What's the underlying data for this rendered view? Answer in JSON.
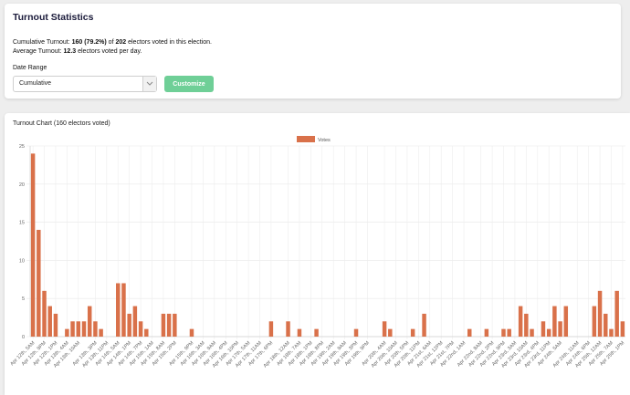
{
  "stats": {
    "title": "Turnout Statistics",
    "cumulative_prefix": "Cumulative Turnout: ",
    "cumulative_count": "160 (79.2%)",
    "cumulative_mid": " of ",
    "cumulative_total": "202",
    "cumulative_suffix": " electors voted in this election.",
    "average_prefix": "Average Turnout: ",
    "average_value": "12.3",
    "average_suffix": " electors voted per day.",
    "date_range_label": "Date Range",
    "date_range_value": "Cumulative",
    "customize_label": "Customize"
  },
  "chart": {
    "title": "Turnout Chart (160 electors voted)"
  },
  "colors": {
    "bar": "#d9714a",
    "accent": "#6fcf97"
  },
  "icons": {
    "dropdown": "chevron-down-icon"
  },
  "chart_data": {
    "type": "bar",
    "title": "",
    "xlabel": "",
    "ylabel": "",
    "ylim": [
      0,
      25
    ],
    "yticks": [
      0,
      5,
      10,
      15,
      20,
      25
    ],
    "legend": "top",
    "grid": true,
    "tick_labels": [
      "Apr 12th, 5AM",
      "Apr 12th, 9PM",
      "Apr 12th, 1PM",
      "Apr 13th, 4AM",
      "Apr 13th, 10AM",
      "Apr 13th, 3PM",
      "Apr 13th, 11PM",
      "Apr 14th, 5AM",
      "Apr 14th, 1PM",
      "Apr 14th, 7PM",
      "Apr 15th, 1AM",
      "Apr 15th, 8AM",
      "Apr 15th, 2PM",
      "Apr 15th, 9PM",
      "Apr 16th, 3AM",
      "Apr 16th, 9AM",
      "Apr 16th, 4PM",
      "Apr 16th, 10PM",
      "Apr 17th, 5AM",
      "Apr 17th, 11AM",
      "Apr 17th, 6PM",
      "Apr 18th, 12AM",
      "Apr 18th, 7AM",
      "Apr 18th, 1PM",
      "Apr 18th, 8PM",
      "Apr 19th, 2AM",
      "Apr 19th, 9AM",
      "Apr 19th, 3PM",
      "Apr 19th, 9PM",
      "Apr 20th, 4AM",
      "Apr 20th, 10AM",
      "Apr 20th, 5PM",
      "Apr 20th, 11PM",
      "Apr 21st, 6AM",
      "Apr 21st, 12PM",
      "Apr 21st, 7PM",
      "Apr 22nd, 1AM",
      "Apr 22nd, 8AM",
      "Apr 22nd, 2PM",
      "Apr 22nd, 9PM",
      "Apr 23rd, 3AM",
      "Apr 23rd, 10AM",
      "Apr 23rd, 4PM",
      "Apr 23rd, 11PM",
      "Apr 24th, 5AM",
      "Apr 24th, 11AM",
      "Apr 24th, 6PM",
      "Apr 25th, 12AM",
      "Apr 25th, 7AM",
      "Apr 25th, 1PM"
    ],
    "series": [
      {
        "name": "Votes",
        "values": [
          24,
          14,
          6,
          4,
          3,
          0,
          1,
          2,
          2,
          2,
          4,
          2,
          1,
          0,
          0,
          7,
          7,
          3,
          4,
          2,
          1,
          0,
          0,
          3,
          3,
          3,
          0,
          0,
          1,
          0,
          0,
          0,
          0,
          0,
          0,
          0,
          0,
          0,
          0,
          0,
          0,
          0,
          2,
          0,
          0,
          2,
          0,
          1,
          0,
          0,
          1,
          0,
          0,
          0,
          0,
          0,
          0,
          1,
          0,
          0,
          0,
          0,
          2,
          1,
          0,
          0,
          0,
          1,
          0,
          3,
          0,
          0,
          0,
          0,
          0,
          0,
          0,
          1,
          0,
          0,
          1,
          0,
          0,
          1,
          1,
          0,
          4,
          3,
          1,
          0,
          2,
          1,
          4,
          2,
          4,
          0,
          0,
          0,
          0,
          4,
          6,
          3,
          1,
          6,
          2
        ]
      }
    ]
  }
}
